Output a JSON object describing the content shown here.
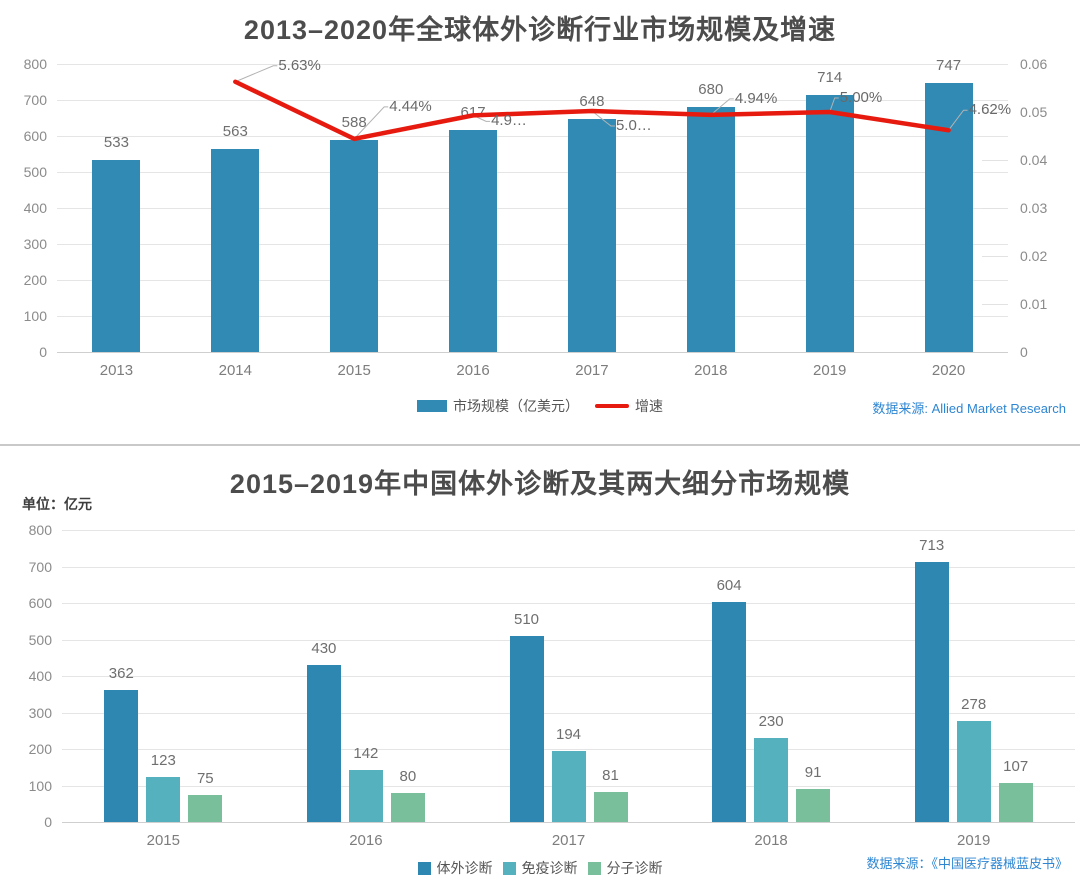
{
  "chart_data": [
    {
      "type": "bar+line",
      "title": "2013–2020年全球体外诊断行业市场规模及增速",
      "categories": [
        "2013",
        "2014",
        "2015",
        "2016",
        "2017",
        "2018",
        "2019",
        "2020"
      ],
      "bar_series": {
        "name": "市场规模（亿美元）",
        "color": "#318ab3",
        "values": [
          533,
          563,
          588,
          617,
          648,
          680,
          714,
          747
        ]
      },
      "line_series": {
        "name": "增速",
        "color": "#e71a0f",
        "start_category_index": 1,
        "values": [
          0.0563,
          0.0444,
          0.0493,
          0.0502,
          0.0494,
          0.05,
          0.0462
        ],
        "labels": [
          "5.63%",
          "4.44%",
          "4.9…",
          "5.0…",
          "4.94%",
          "5.00%",
          "4.62%"
        ]
      },
      "left_axis": {
        "ticks": [
          0,
          100,
          200,
          300,
          400,
          500,
          600,
          700,
          800
        ],
        "max": 800
      },
      "right_axis": {
        "ticks": [
          0,
          0.01,
          0.02,
          0.03,
          0.04,
          0.05,
          0.06
        ],
        "max": 0.06,
        "tick_labels": [
          "0",
          "0.01",
          "0.02",
          "0.03",
          "0.04",
          "0.05",
          "0.06"
        ]
      },
      "grid": true,
      "legend_position": "bottom-center",
      "source": "数据来源: Allied Market Research"
    },
    {
      "type": "bar",
      "title": "2015–2019年中国体外诊断及其两大细分市场规模",
      "unit_label": "单位：亿元",
      "categories": [
        "2015",
        "2016",
        "2017",
        "2018",
        "2019"
      ],
      "series": [
        {
          "name": "体外诊断",
          "color": "#2e87b0",
          "values": [
            362,
            430,
            510,
            604,
            713
          ]
        },
        {
          "name": "免疫诊断",
          "color": "#54b1bd",
          "values": [
            123,
            142,
            194,
            230,
            278
          ]
        },
        {
          "name": "分子诊断",
          "color": "#79bf9b",
          "values": [
            75,
            80,
            81,
            91,
            107
          ]
        }
      ],
      "left_axis": {
        "ticks": [
          0,
          100,
          200,
          300,
          400,
          500,
          600,
          700,
          800
        ],
        "max": 800
      },
      "grid": true,
      "legend_position": "bottom-center",
      "source": "数据来源：《中国医疗器械蓝皮书》"
    }
  ],
  "colors": {
    "title_text": "#4c4c4c",
    "axis_text": "#8b8b8b",
    "value_text": "#6f6f6f",
    "gridline": "#e5e5e5",
    "source_text": "#2e86d2"
  }
}
